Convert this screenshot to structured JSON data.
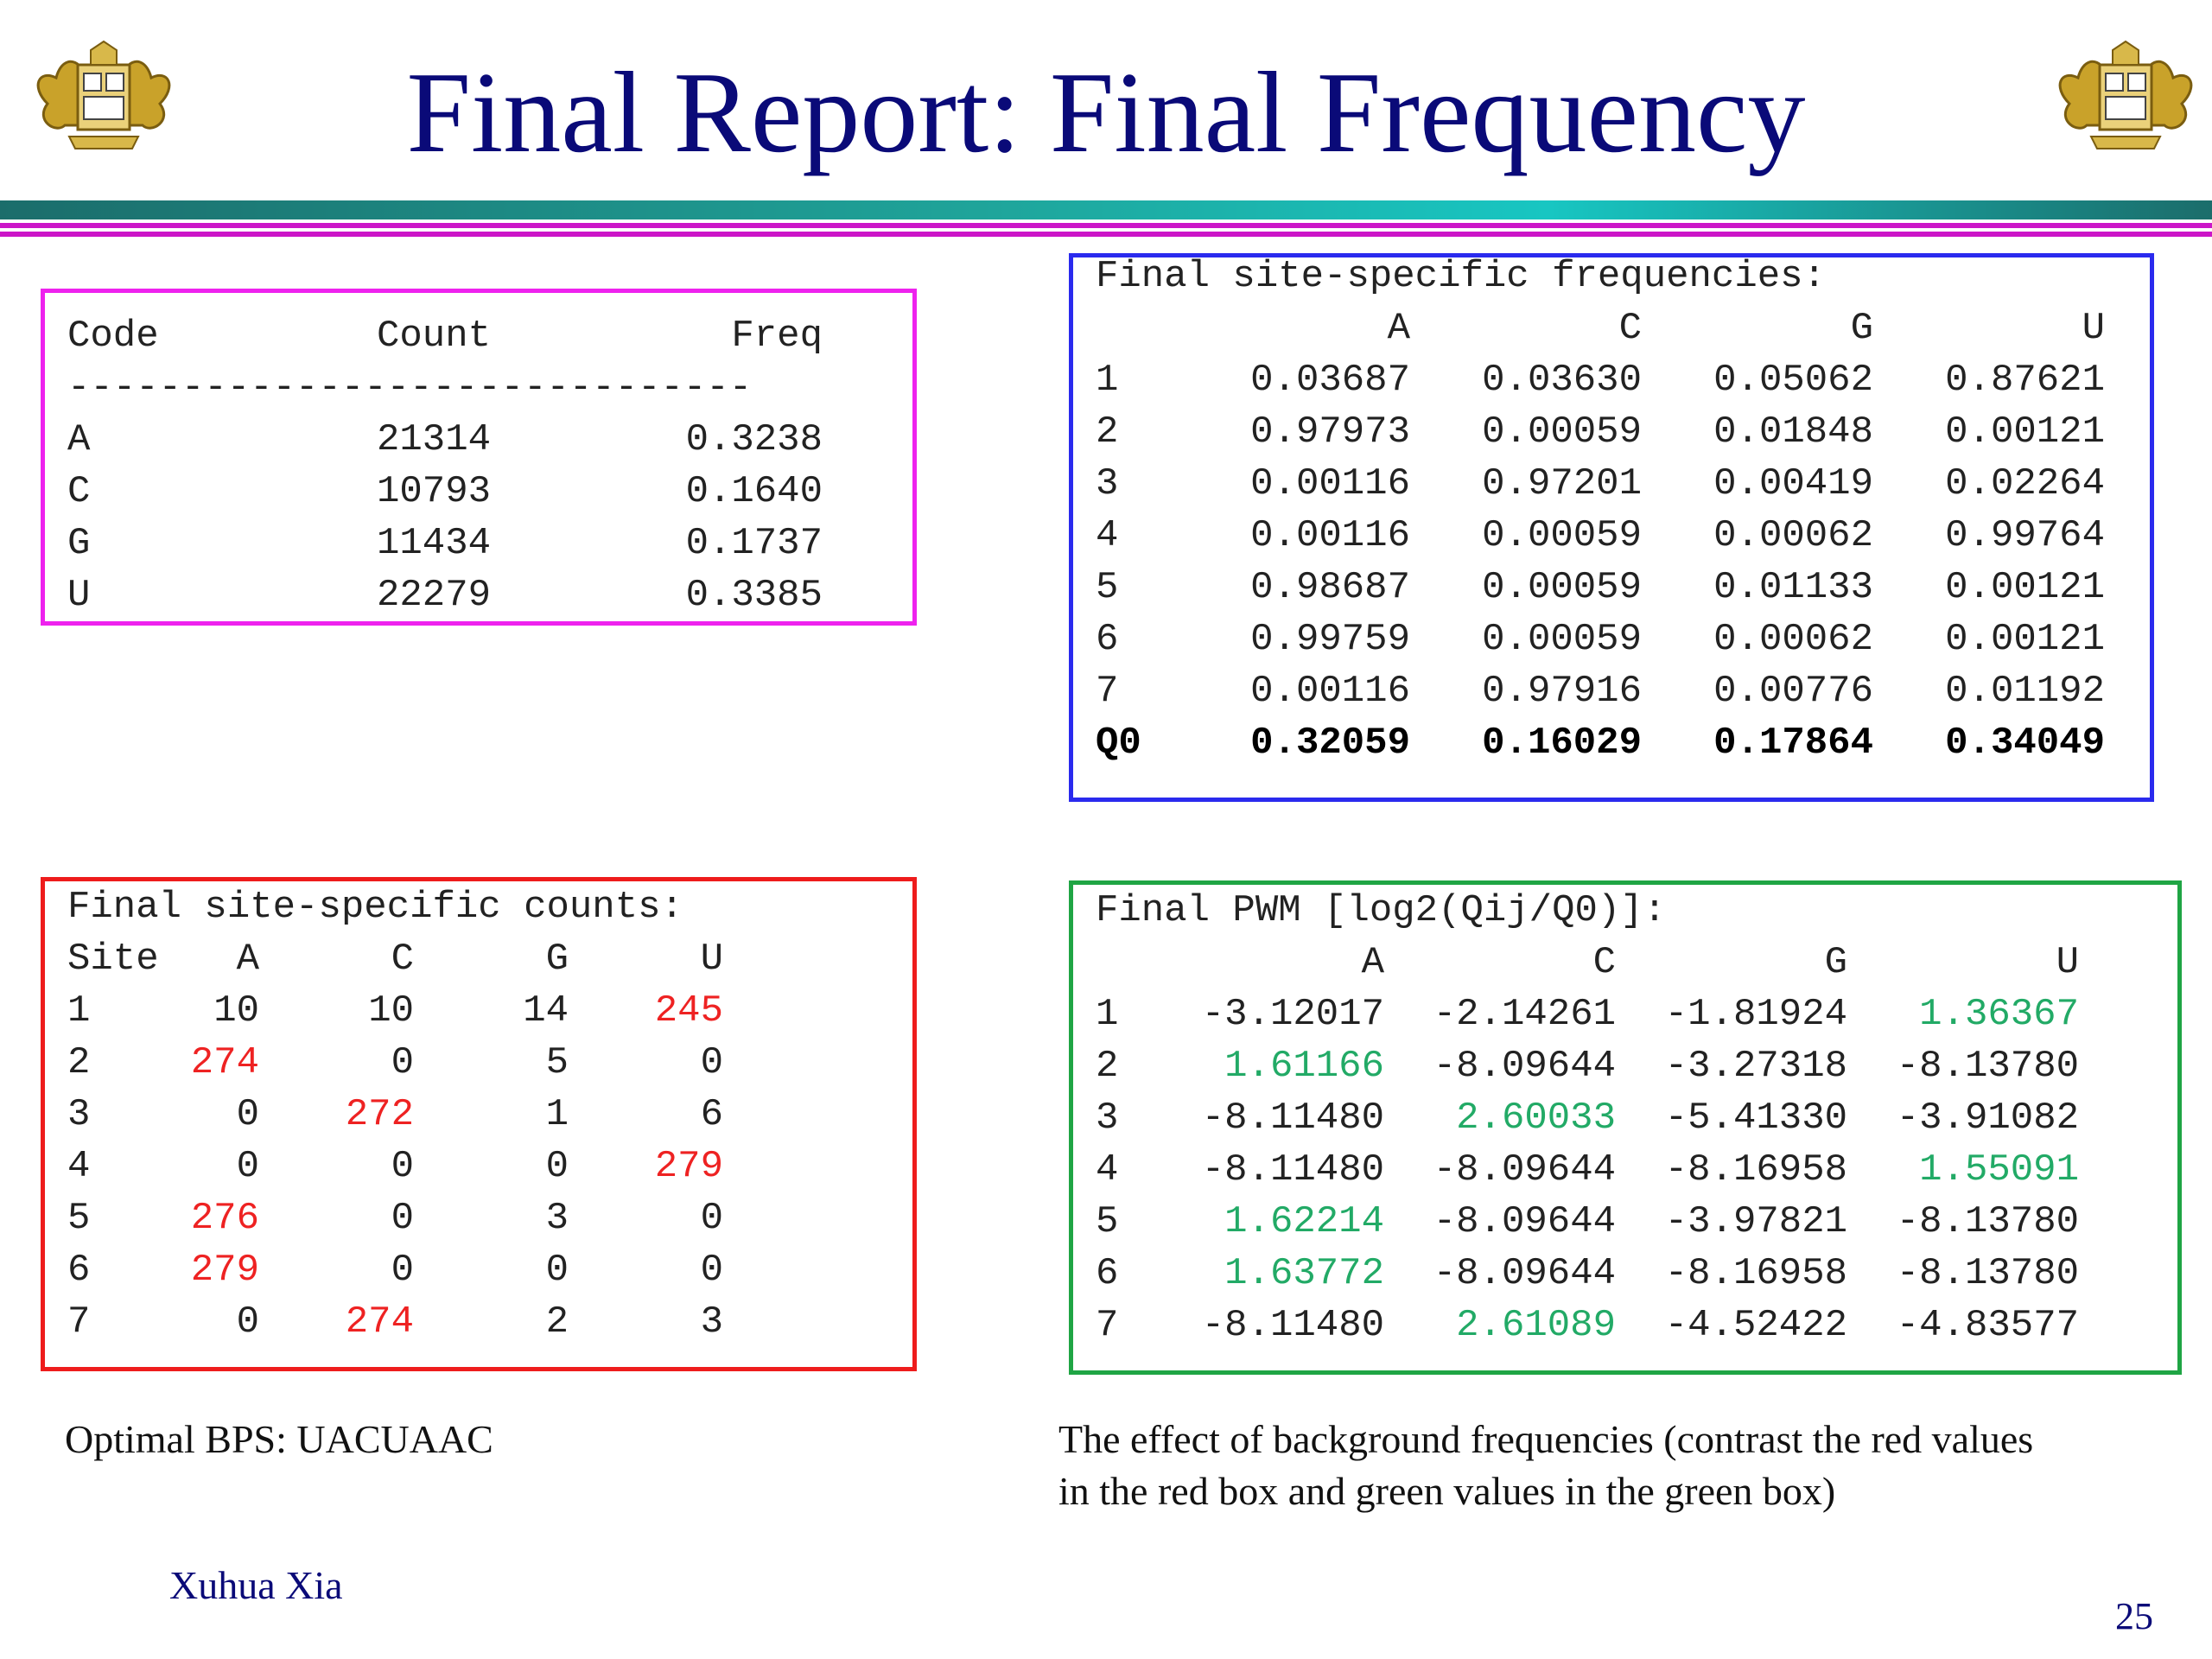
{
  "title": "Final Report: Final Frequency",
  "colors": {
    "title": "#0a0a78",
    "magenta_box": "#ee22ee",
    "blue_box": "#2a2aee",
    "red_box": "#ee1c1c",
    "green_box": "#1fa544",
    "red_value": "#ee2222",
    "green_value": "#22aa66"
  },
  "logo_icon": "university-crest-icon",
  "freq_table": {
    "headers": {
      "code": "Code",
      "count": "Count",
      "freq": "Freq"
    },
    "separator": "------------------------------",
    "rows": [
      {
        "code": "A",
        "count": "21314",
        "freq": "0.3238"
      },
      {
        "code": "C",
        "count": "10793",
        "freq": "0.1640"
      },
      {
        "code": "G",
        "count": "11434",
        "freq": "0.1737"
      },
      {
        "code": "U",
        "count": "22279",
        "freq": "0.3385"
      }
    ]
  },
  "site_freqs": {
    "heading": "Final site-specific frequencies:",
    "cols": [
      "A",
      "C",
      "G",
      "U"
    ],
    "rows": [
      {
        "label": "1",
        "values": [
          "0.03687",
          "0.03630",
          "0.05062",
          "0.87621"
        ]
      },
      {
        "label": "2",
        "values": [
          "0.97973",
          "0.00059",
          "0.01848",
          "0.00121"
        ]
      },
      {
        "label": "3",
        "values": [
          "0.00116",
          "0.97201",
          "0.00419",
          "0.02264"
        ]
      },
      {
        "label": "4",
        "values": [
          "0.00116",
          "0.00059",
          "0.00062",
          "0.99764"
        ]
      },
      {
        "label": "5",
        "values": [
          "0.98687",
          "0.00059",
          "0.01133",
          "0.00121"
        ]
      },
      {
        "label": "6",
        "values": [
          "0.99759",
          "0.00059",
          "0.00062",
          "0.00121"
        ]
      },
      {
        "label": "7",
        "values": [
          "0.00116",
          "0.97916",
          "0.00776",
          "0.01192"
        ]
      }
    ],
    "q0": {
      "label": "Q0",
      "values": [
        "0.32059",
        "0.16029",
        "0.17864",
        "0.34049"
      ]
    }
  },
  "site_counts": {
    "heading": "Final site-specific counts:",
    "cols": [
      "Site",
      "A",
      "C",
      "G",
      "U"
    ],
    "rows": [
      {
        "label": "1",
        "values": [
          "10",
          "10",
          "14",
          "245"
        ],
        "highlight": [
          3
        ]
      },
      {
        "label": "2",
        "values": [
          "274",
          "0",
          "5",
          "0"
        ],
        "highlight": [
          0
        ]
      },
      {
        "label": "3",
        "values": [
          "0",
          "272",
          "1",
          "6"
        ],
        "highlight": [
          1
        ]
      },
      {
        "label": "4",
        "values": [
          "0",
          "0",
          "0",
          "279"
        ],
        "highlight": [
          3
        ]
      },
      {
        "label": "5",
        "values": [
          "276",
          "0",
          "3",
          "0"
        ],
        "highlight": [
          0
        ]
      },
      {
        "label": "6",
        "values": [
          "279",
          "0",
          "0",
          "0"
        ],
        "highlight": [
          0
        ]
      },
      {
        "label": "7",
        "values": [
          "0",
          "274",
          "2",
          "3"
        ],
        "highlight": [
          1
        ]
      }
    ]
  },
  "pwm": {
    "heading": "Final PWM [log2(Qij/Q0)]:",
    "cols": [
      "A",
      "C",
      "G",
      "U"
    ],
    "rows": [
      {
        "label": "1",
        "values": [
          "-3.12017",
          "-2.14261",
          "-1.81924",
          "1.36367"
        ],
        "highlight": [
          3
        ]
      },
      {
        "label": "2",
        "values": [
          "1.61166",
          "-8.09644",
          "-3.27318",
          "-8.13780"
        ],
        "highlight": [
          0
        ]
      },
      {
        "label": "3",
        "values": [
          "-8.11480",
          "2.60033",
          "-5.41330",
          "-3.91082"
        ],
        "highlight": [
          1
        ]
      },
      {
        "label": "4",
        "values": [
          "-8.11480",
          "-8.09644",
          "-8.16958",
          "1.55091"
        ],
        "highlight": [
          3
        ]
      },
      {
        "label": "5",
        "values": [
          "1.62214",
          "-8.09644",
          "-3.97821",
          "-8.13780"
        ],
        "highlight": [
          0
        ]
      },
      {
        "label": "6",
        "values": [
          "1.63772",
          "-8.09644",
          "-8.16958",
          "-8.13780"
        ],
        "highlight": [
          0
        ]
      },
      {
        "label": "7",
        "values": [
          "-8.11480",
          "2.61089",
          "-4.52422",
          "-4.83577"
        ],
        "highlight": [
          1
        ]
      }
    ]
  },
  "optimal_bps": "Optimal BPS: UACUAAC",
  "effect_note": {
    "line1": "The effect of background frequencies (contrast the red values",
    "line2": "in the red box and green values in the green box)"
  },
  "author": "Xuhua Xia",
  "page_number": "25"
}
